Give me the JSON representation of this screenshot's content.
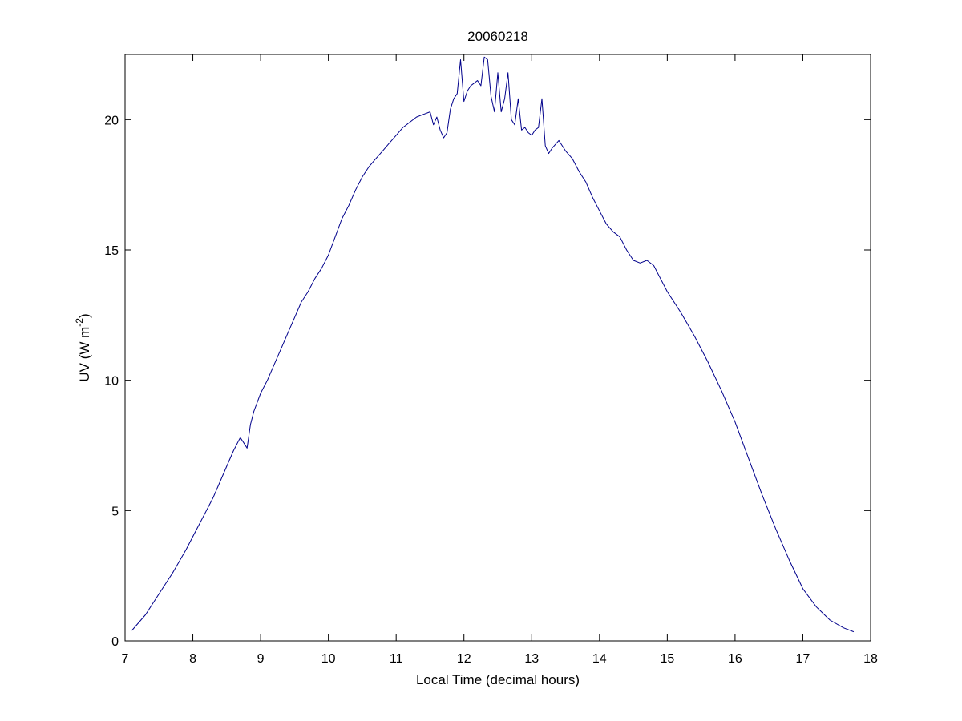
{
  "chart_data": {
    "type": "line",
    "title": "20060218",
    "xlabel": "Local Time (decimal hours)",
    "ylabel": {
      "main": "UV (W m",
      "superscript": "-2",
      "close": ")"
    },
    "xlim": [
      7,
      18
    ],
    "ylim": [
      0,
      22.5
    ],
    "xticks": [
      "7",
      "8",
      "9",
      "10",
      "11",
      "12",
      "13",
      "14",
      "15",
      "16",
      "17",
      "18"
    ],
    "yticks": [
      "0",
      "5",
      "10",
      "15",
      "20"
    ],
    "grid": false,
    "legend": "none",
    "series": [
      {
        "color": "#00008b",
        "x": [
          7.1,
          7.3,
          7.5,
          7.7,
          7.9,
          8.0,
          8.1,
          8.2,
          8.3,
          8.4,
          8.5,
          8.6,
          8.7,
          8.75,
          8.8,
          8.85,
          8.9,
          9.0,
          9.1,
          9.2,
          9.3,
          9.4,
          9.5,
          9.6,
          9.7,
          9.8,
          9.9,
          10.0,
          10.1,
          10.2,
          10.3,
          10.4,
          10.5,
          10.6,
          10.7,
          10.8,
          10.9,
          11.0,
          11.1,
          11.2,
          11.3,
          11.4,
          11.5,
          11.55,
          11.6,
          11.65,
          11.7,
          11.75,
          11.8,
          11.85,
          11.9,
          11.95,
          12.0,
          12.05,
          12.1,
          12.15,
          12.2,
          12.25,
          12.3,
          12.35,
          12.4,
          12.45,
          12.5,
          12.55,
          12.6,
          12.65,
          12.7,
          12.75,
          12.8,
          12.85,
          12.9,
          12.95,
          13.0,
          13.05,
          13.1,
          13.15,
          13.2,
          13.25,
          13.3,
          13.4,
          13.5,
          13.6,
          13.7,
          13.8,
          13.9,
          14.0,
          14.1,
          14.2,
          14.3,
          14.4,
          14.5,
          14.6,
          14.7,
          14.8,
          14.9,
          15.0,
          15.2,
          15.4,
          15.6,
          15.8,
          16.0,
          16.2,
          16.4,
          16.6,
          16.8,
          17.0,
          17.2,
          17.4,
          17.6,
          17.75
        ],
        "y": [
          0.4,
          1.0,
          1.8,
          2.6,
          3.5,
          4.0,
          4.5,
          5.0,
          5.5,
          6.1,
          6.7,
          7.3,
          7.8,
          7.6,
          7.4,
          8.3,
          8.8,
          9.5,
          10.0,
          10.6,
          11.2,
          11.8,
          12.4,
          13.0,
          13.4,
          13.9,
          14.3,
          14.8,
          15.5,
          16.2,
          16.7,
          17.3,
          17.8,
          18.2,
          18.5,
          18.8,
          19.1,
          19.4,
          19.7,
          19.9,
          20.1,
          20.2,
          20.3,
          19.8,
          20.1,
          19.6,
          19.3,
          19.5,
          20.4,
          20.8,
          21.0,
          22.3,
          20.7,
          21.1,
          21.3,
          21.4,
          21.5,
          21.3,
          22.4,
          22.3,
          20.9,
          20.3,
          21.8,
          20.3,
          20.8,
          21.8,
          20.0,
          19.8,
          20.8,
          19.6,
          19.7,
          19.5,
          19.4,
          19.6,
          19.7,
          20.8,
          19.0,
          18.7,
          18.9,
          19.2,
          18.8,
          18.5,
          18.0,
          17.6,
          17.0,
          16.5,
          16.0,
          15.7,
          15.5,
          15.0,
          14.6,
          14.5,
          14.6,
          14.4,
          13.9,
          13.4,
          12.6,
          11.7,
          10.7,
          9.6,
          8.4,
          7.0,
          5.6,
          4.3,
          3.1,
          2.0,
          1.3,
          0.8,
          0.5,
          0.35
        ]
      }
    ]
  }
}
